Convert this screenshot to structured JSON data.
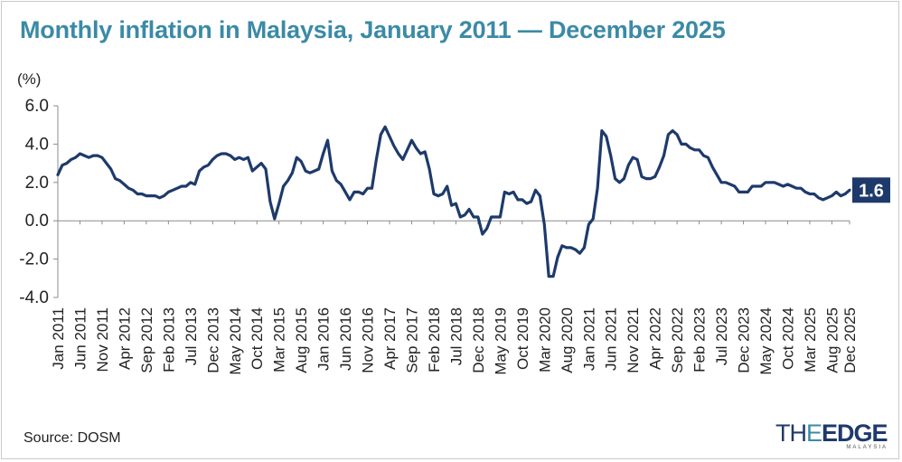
{
  "title": "Monthly inflation in Malaysia, January 2011 — December 2025",
  "source": "Source: DOSM",
  "brand": {
    "logo_text": "THEEDGE",
    "logo_sub": "MALAYSIA"
  },
  "colors": {
    "title": "#3b8aa6",
    "line": "#1e3a6b",
    "badge": "#1e3a6b"
  },
  "chart_data": {
    "type": "line",
    "title": "Monthly inflation in Malaysia, January 2011 — December 2025",
    "ylabel": "(%)",
    "xlabel": "",
    "ylim": [
      -4.0,
      6.0
    ],
    "yticks": [
      "6.0",
      "4.0",
      "2.0",
      "0.0",
      "-2.0",
      "-4.0"
    ],
    "grid": false,
    "x_tick_labels": [
      "Jan 2011",
      "Jun 2011",
      "Nov 2011",
      "Apr 2012",
      "Sep 2012",
      "Feb 2013",
      "Jul 2013",
      "Dec 2013",
      "May 2014",
      "Oct 2014",
      "Mar 2015",
      "Aug 2015",
      "Jan 2016",
      "Jun 2016",
      "Nov 2016",
      "Apr 2017",
      "Sep 2017",
      "Feb 2018",
      "Jul 2018",
      "Dec 2018",
      "May 2019",
      "Oct 2019",
      "Mar 2020",
      "Aug 2020",
      "Jan 2021",
      "Jun 2021",
      "Nov 2021",
      "Apr 2022",
      "Sep 2022",
      "Feb 2023",
      "Jul 2023",
      "Dec 2023",
      "May 2024",
      "Oct 2024",
      "Mar 2025",
      "Aug 2025",
      "Dec 2025"
    ],
    "last_value_label": "1.6",
    "series": [
      {
        "start": "Jan 2011",
        "frequency": "monthly",
        "values": [
          2.4,
          2.9,
          3.0,
          3.2,
          3.3,
          3.5,
          3.4,
          3.3,
          3.4,
          3.4,
          3.3,
          3.0,
          2.7,
          2.2,
          2.1,
          1.9,
          1.7,
          1.6,
          1.4,
          1.4,
          1.3,
          1.3,
          1.3,
          1.2,
          1.3,
          1.5,
          1.6,
          1.7,
          1.8,
          1.8,
          2.0,
          1.9,
          2.6,
          2.8,
          2.9,
          3.2,
          3.4,
          3.5,
          3.5,
          3.4,
          3.2,
          3.3,
          3.2,
          3.3,
          2.6,
          2.8,
          3.0,
          2.7,
          1.0,
          0.1,
          0.9,
          1.8,
          2.1,
          2.5,
          3.3,
          3.1,
          2.6,
          2.5,
          2.6,
          2.7,
          3.5,
          4.2,
          2.6,
          2.1,
          1.9,
          1.5,
          1.1,
          1.5,
          1.5,
          1.4,
          1.7,
          1.7,
          3.2,
          4.5,
          4.9,
          4.4,
          3.9,
          3.5,
          3.2,
          3.7,
          4.2,
          3.8,
          3.5,
          3.6,
          2.7,
          1.4,
          1.3,
          1.4,
          1.8,
          0.8,
          0.9,
          0.2,
          0.3,
          0.6,
          0.2,
          0.2,
          -0.7,
          -0.4,
          0.2,
          0.2,
          0.2,
          1.5,
          1.4,
          1.5,
          1.1,
          1.1,
          0.9,
          1.0,
          1.6,
          1.3,
          -0.2,
          -2.9,
          -2.9,
          -1.9,
          -1.3,
          -1.4,
          -1.4,
          -1.5,
          -1.7,
          -1.4,
          -0.2,
          0.1,
          1.7,
          4.7,
          4.4,
          3.4,
          2.2,
          2.0,
          2.2,
          2.9,
          3.3,
          3.2,
          2.3,
          2.2,
          2.2,
          2.3,
          2.8,
          3.4,
          4.5,
          4.7,
          4.5,
          4.0,
          4.0,
          3.8,
          3.7,
          3.7,
          3.4,
          3.3,
          2.8,
          2.4,
          2.0,
          2.0,
          1.9,
          1.8,
          1.5,
          1.5,
          1.5,
          1.8,
          1.8,
          1.8,
          2.0,
          2.0,
          2.0,
          1.9,
          1.8,
          1.9,
          1.8,
          1.7,
          1.7,
          1.5,
          1.4,
          1.4,
          1.2,
          1.1,
          1.2,
          1.3,
          1.5,
          1.3,
          1.4,
          1.6
        ]
      }
    ]
  }
}
